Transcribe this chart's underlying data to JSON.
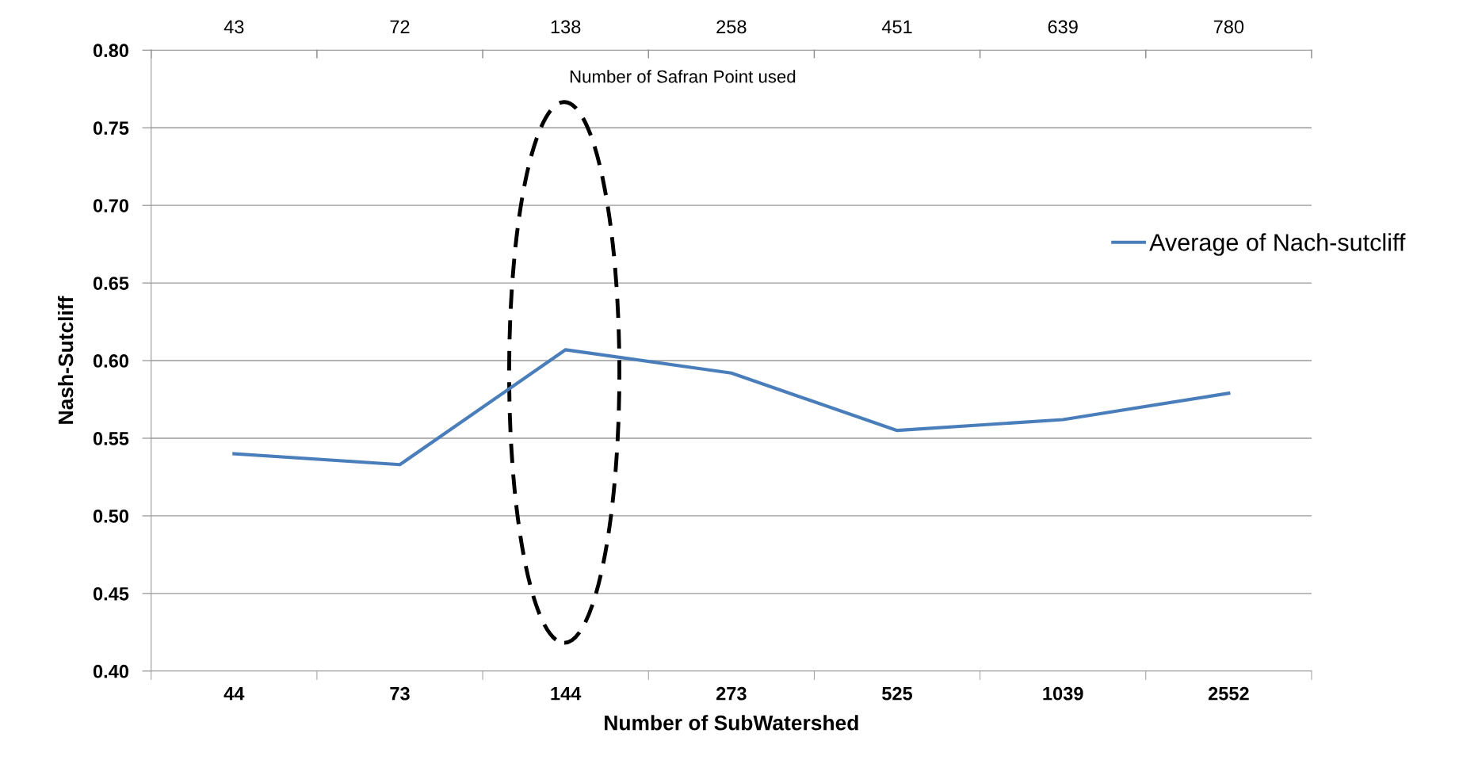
{
  "chart_data": {
    "type": "line",
    "xlabel": "Number of SubWatershed",
    "ylabel": "Nash-Sutcliff",
    "categories": [
      "44",
      "73",
      "144",
      "273",
      "525",
      "1039",
      "2552"
    ],
    "series": [
      {
        "name": "Average of Nach-sutcliff",
        "color": "#4a7ebb",
        "values": [
          0.54,
          0.533,
          0.607,
          0.592,
          0.555,
          0.562,
          0.579
        ]
      }
    ],
    "ylim": [
      0.4,
      0.8
    ],
    "yticks": [
      {
        "value": 0.4,
        "label": "0.40"
      },
      {
        "value": 0.45,
        "label": "0.45"
      },
      {
        "value": 0.5,
        "label": "0.50"
      },
      {
        "value": 0.55,
        "label": "0.55"
      },
      {
        "value": 0.6,
        "label": "0.60"
      },
      {
        "value": 0.65,
        "label": "0.65"
      },
      {
        "value": 0.7,
        "label": "0.70"
      },
      {
        "value": 0.75,
        "label": "0.75"
      },
      {
        "value": 0.8,
        "label": "0.80"
      }
    ],
    "annotations": [
      "43",
      "72",
      "138",
      "258",
      "451",
      "639",
      "780",
      "Number of Safran Point used"
    ],
    "grid": "y",
    "legend": "right",
    "marker": "none",
    "line_style": "solid"
  }
}
